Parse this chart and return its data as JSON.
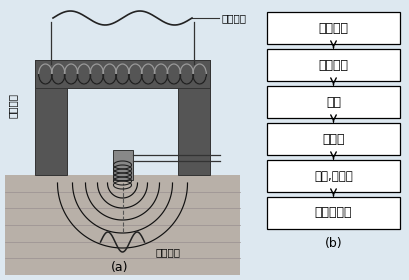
{
  "bg_color": "#dde8f0",
  "fig_width": 4.1,
  "fig_height": 2.8,
  "dpi": 100,
  "label_a": "(a)",
  "label_b": "(b)",
  "flowchart_boxes": [
    "激磁电路",
    "作用磁场",
    "工件",
    "传感器",
    "放大,滤波器",
    "显示与输出"
  ],
  "label_cejv": "测试区域",
  "label_jicidianv": "激蕊电压",
  "label_beicejian": "被测零件",
  "box_color": "#ffffff",
  "box_edge_color": "#000000",
  "arrow_color": "#000000",
  "text_color": "#000000",
  "core_dark": "#555555",
  "core_mid": "#777777",
  "field_line_color": "#111111",
  "sine_color": "#222222",
  "ground_color": "#b8b0a8",
  "ground_line_color": "#999090"
}
